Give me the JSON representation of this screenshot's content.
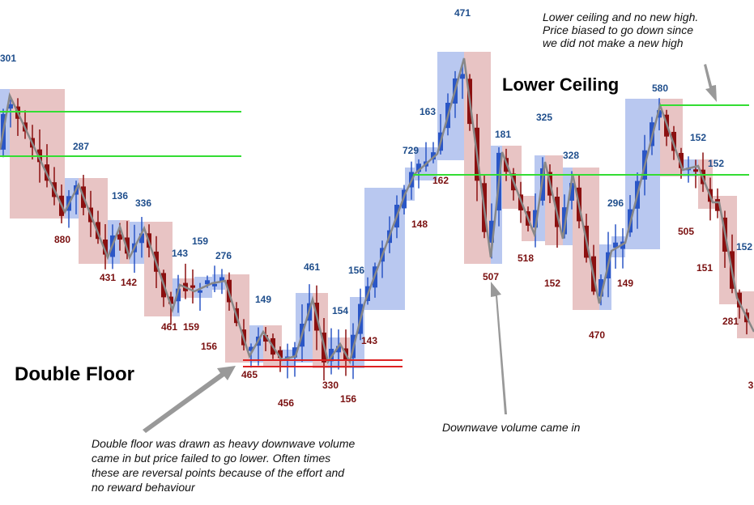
{
  "headings": [
    "Double Floor",
    "Lower Ceiling"
  ],
  "notes": [
    [
      "Lower ceiling and no new high.",
      "Price biased to go down since",
      "we did not make a new high"
    ],
    [
      "Downwave volume came in"
    ],
    [
      "Double floor was drawn as heavy downwave volume",
      "came in but price failed to go lower. Often times",
      "these are reversal points because of the effort and",
      "no reward behaviour"
    ]
  ],
  "wave_labels": [
    "301",
    "287",
    "136",
    "336",
    "143",
    "159",
    "276",
    "149",
    "461",
    "154",
    "156",
    "729",
    "163",
    "471",
    "181",
    "325",
    "328",
    "296",
    "580",
    "152",
    "152",
    "152",
    "880",
    "431",
    "142",
    "461",
    "159",
    "156",
    "465",
    "456",
    "330",
    "156",
    "143",
    "148",
    "162",
    "507",
    "518",
    "152",
    "149",
    "470",
    "505",
    "151",
    "281",
    "3"
  ]
}
